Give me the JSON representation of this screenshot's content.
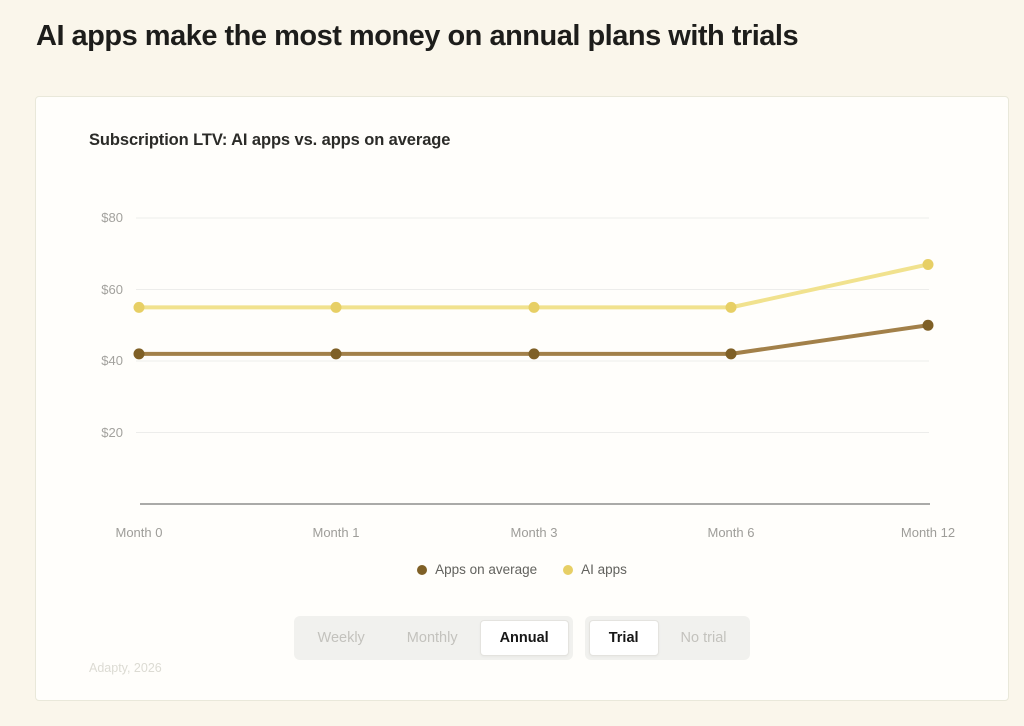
{
  "page": {
    "title": "AI apps make the most money on annual plans with trials"
  },
  "card": {
    "chart_title": "Subscription LTV: AI apps vs. apps on average",
    "source": "Adapty, 2026"
  },
  "chart_data": {
    "type": "line",
    "title": "Subscription LTV: AI apps vs. apps on average",
    "x": [
      "Month 0",
      "Month 1",
      "Month 3",
      "Month 6",
      "Month 12"
    ],
    "series": [
      {
        "name": "Apps on average",
        "values": [
          42,
          42,
          42,
          42,
          50
        ],
        "line_color": "#a28049",
        "dot_color": "#7f6026"
      },
      {
        "name": "AI apps",
        "values": [
          55,
          55,
          55,
          55,
          67
        ],
        "line_color": "#f1e28e",
        "dot_color": "#e7cf65"
      }
    ],
    "y_ticks": [
      "$80",
      "$60",
      "$40",
      "$20"
    ],
    "y_tick_values": [
      80,
      60,
      40,
      20
    ],
    "ylim": [
      0,
      80
    ],
    "xlabel": "",
    "ylabel": "",
    "grid": "horizontal-only",
    "legend_position": "bottom-center",
    "grid_color": "#ededeb",
    "axis_line_color": "#8e8e8c"
  },
  "controls": {
    "period": {
      "options": [
        "Weekly",
        "Monthly",
        "Annual"
      ],
      "selected": "Annual"
    },
    "trial": {
      "options": [
        "Trial",
        "No trial"
      ],
      "selected": "Trial"
    }
  }
}
